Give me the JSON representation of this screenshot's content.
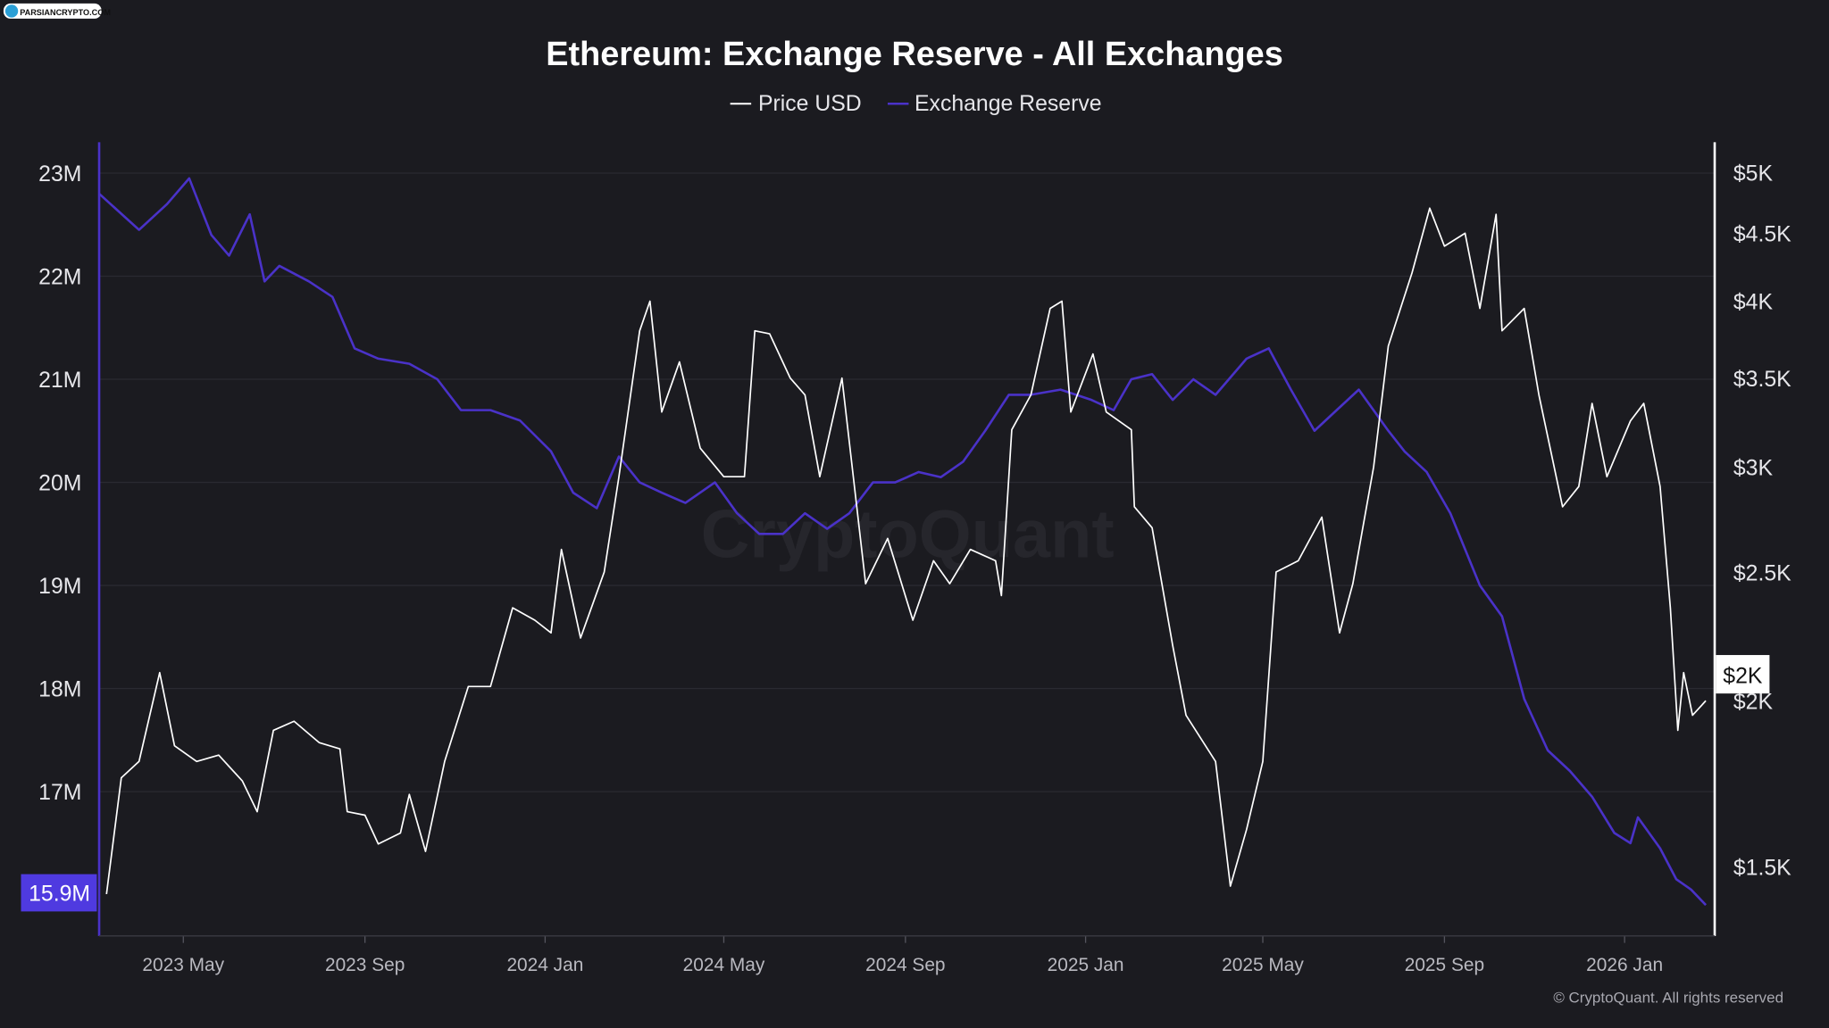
{
  "logo": {
    "text": "PARSIANCRYPTO.COM"
  },
  "watermark": "CryptoQuant",
  "copyright": "© CryptoQuant. All rights reserved",
  "colors": {
    "background": "#1b1b20",
    "price": "#ffffff",
    "reserve": "#4a32c8",
    "reserve_badge": "#4f3ae0",
    "grid": "#2a2a31"
  },
  "chart_data": {
    "type": "line",
    "title": "Ethereum: Exchange Reserve - All Exchanges",
    "legend": [
      "Price USD",
      "Exchange Reserve"
    ],
    "legend_position": "top-center",
    "x_range": [
      "2023-03-05",
      "2026-03-03"
    ],
    "x_ticks": [
      {
        "date": "2023-05-01",
        "label": "2023 May"
      },
      {
        "date": "2023-09-01",
        "label": "2023 Sep"
      },
      {
        "date": "2024-01-01",
        "label": "2024 Jan"
      },
      {
        "date": "2024-05-01",
        "label": "2024 May"
      },
      {
        "date": "2024-09-01",
        "label": "2024 Sep"
      },
      {
        "date": "2025-01-01",
        "label": "2025 Jan"
      },
      {
        "date": "2025-05-01",
        "label": "2025 May"
      },
      {
        "date": "2025-09-01",
        "label": "2025 Sep"
      },
      {
        "date": "2026-01-01",
        "label": "2026 Jan"
      }
    ],
    "left_axis": {
      "label": "Exchange Reserve",
      "scale": "linear",
      "range": [
        15.6,
        23.3
      ],
      "ticks": [
        {
          "v": 23,
          "label": "23M"
        },
        {
          "v": 22,
          "label": "22M"
        },
        {
          "v": 21,
          "label": "21M"
        },
        {
          "v": 20,
          "label": "20M"
        },
        {
          "v": 19,
          "label": "19M"
        },
        {
          "v": 18,
          "label": "18M"
        },
        {
          "v": 17,
          "label": "17M"
        }
      ],
      "current_label": "15.9M",
      "current_value": 15.9
    },
    "right_axis": {
      "label": "Price USD",
      "scale": "log",
      "range": [
        1330,
        5270
      ],
      "ticks": [
        {
          "v": 5000,
          "label": "$5K"
        },
        {
          "v": 4500,
          "label": "$4.5K"
        },
        {
          "v": 4000,
          "label": "$4K"
        },
        {
          "v": 3500,
          "label": "$3.5K"
        },
        {
          "v": 3000,
          "label": "$3K"
        },
        {
          "v": 2500,
          "label": "$2.5K"
        },
        {
          "v": 2000,
          "label": "$2K"
        },
        {
          "v": 1500,
          "label": "$1.5K"
        }
      ],
      "current_label": "$2K",
      "current_value": 2000
    },
    "grid": true,
    "series": [
      {
        "name": "Price USD",
        "axis": "right",
        "points": [
          [
            "2023-03-10",
            1430
          ],
          [
            "2023-03-20",
            1750
          ],
          [
            "2023-04-01",
            1800
          ],
          [
            "2023-04-15",
            2100
          ],
          [
            "2023-04-25",
            1850
          ],
          [
            "2023-05-10",
            1800
          ],
          [
            "2023-05-25",
            1820
          ],
          [
            "2023-06-10",
            1740
          ],
          [
            "2023-06-20",
            1650
          ],
          [
            "2023-07-01",
            1900
          ],
          [
            "2023-07-15",
            1930
          ],
          [
            "2023-08-01",
            1860
          ],
          [
            "2023-08-15",
            1840
          ],
          [
            "2023-08-20",
            1650
          ],
          [
            "2023-09-01",
            1640
          ],
          [
            "2023-09-10",
            1560
          ],
          [
            "2023-09-25",
            1590
          ],
          [
            "2023-10-01",
            1700
          ],
          [
            "2023-10-12",
            1540
          ],
          [
            "2023-10-25",
            1800
          ],
          [
            "2023-11-10",
            2050
          ],
          [
            "2023-11-25",
            2050
          ],
          [
            "2023-12-10",
            2350
          ],
          [
            "2023-12-25",
            2300
          ],
          [
            "2024-01-05",
            2250
          ],
          [
            "2024-01-12",
            2600
          ],
          [
            "2024-01-25",
            2230
          ],
          [
            "2024-02-10",
            2500
          ],
          [
            "2024-02-20",
            2950
          ],
          [
            "2024-03-05",
            3800
          ],
          [
            "2024-03-12",
            4000
          ],
          [
            "2024-03-20",
            3300
          ],
          [
            "2024-04-01",
            3600
          ],
          [
            "2024-04-15",
            3100
          ],
          [
            "2024-05-01",
            2950
          ],
          [
            "2024-05-15",
            2950
          ],
          [
            "2024-05-22",
            3800
          ],
          [
            "2024-06-01",
            3780
          ],
          [
            "2024-06-15",
            3500
          ],
          [
            "2024-06-25",
            3400
          ],
          [
            "2024-07-05",
            2950
          ],
          [
            "2024-07-20",
            3500
          ],
          [
            "2024-08-05",
            2450
          ],
          [
            "2024-08-20",
            2650
          ],
          [
            "2024-09-06",
            2300
          ],
          [
            "2024-09-20",
            2550
          ],
          [
            "2024-10-01",
            2450
          ],
          [
            "2024-10-15",
            2600
          ],
          [
            "2024-11-01",
            2550
          ],
          [
            "2024-11-05",
            2400
          ],
          [
            "2024-11-12",
            3200
          ],
          [
            "2024-11-25",
            3400
          ],
          [
            "2024-12-08",
            3950
          ],
          [
            "2024-12-16",
            4000
          ],
          [
            "2024-12-22",
            3300
          ],
          [
            "2025-01-06",
            3650
          ],
          [
            "2025-01-15",
            3300
          ],
          [
            "2025-02-01",
            3200
          ],
          [
            "2025-02-03",
            2800
          ],
          [
            "2025-02-15",
            2700
          ],
          [
            "2025-03-01",
            2200
          ],
          [
            "2025-03-10",
            1950
          ],
          [
            "2025-03-30",
            1800
          ],
          [
            "2025-04-09",
            1450
          ],
          [
            "2025-04-20",
            1600
          ],
          [
            "2025-05-01",
            1800
          ],
          [
            "2025-05-10",
            2500
          ],
          [
            "2025-05-25",
            2550
          ],
          [
            "2025-06-10",
            2750
          ],
          [
            "2025-06-22",
            2250
          ],
          [
            "2025-07-01",
            2450
          ],
          [
            "2025-07-15",
            3000
          ],
          [
            "2025-07-25",
            3700
          ],
          [
            "2025-08-10",
            4200
          ],
          [
            "2025-08-22",
            4700
          ],
          [
            "2025-09-01",
            4400
          ],
          [
            "2025-09-15",
            4500
          ],
          [
            "2025-09-25",
            3950
          ],
          [
            "2025-10-06",
            4650
          ],
          [
            "2025-10-10",
            3800
          ],
          [
            "2025-10-25",
            3950
          ],
          [
            "2025-11-04",
            3400
          ],
          [
            "2025-11-20",
            2800
          ],
          [
            "2025-12-01",
            2900
          ],
          [
            "2025-12-10",
            3350
          ],
          [
            "2025-12-20",
            2950
          ],
          [
            "2026-01-05",
            3250
          ],
          [
            "2026-01-14",
            3350
          ],
          [
            "2026-01-25",
            2900
          ],
          [
            "2026-02-01",
            2350
          ],
          [
            "2026-02-06",
            1900
          ],
          [
            "2026-02-10",
            2100
          ],
          [
            "2026-02-16",
            1950
          ],
          [
            "2026-02-25",
            2000
          ]
        ]
      },
      {
        "name": "Exchange Reserve",
        "axis": "left",
        "points": [
          [
            "2023-03-05",
            22.8
          ],
          [
            "2023-04-01",
            22.45
          ],
          [
            "2023-04-20",
            22.7
          ],
          [
            "2023-05-05",
            22.95
          ],
          [
            "2023-05-20",
            22.4
          ],
          [
            "2023-06-01",
            22.2
          ],
          [
            "2023-06-15",
            22.6
          ],
          [
            "2023-06-25",
            21.95
          ],
          [
            "2023-07-05",
            22.1
          ],
          [
            "2023-07-25",
            21.95
          ],
          [
            "2023-08-10",
            21.8
          ],
          [
            "2023-08-25",
            21.3
          ],
          [
            "2023-09-10",
            21.2
          ],
          [
            "2023-10-01",
            21.15
          ],
          [
            "2023-10-20",
            21.0
          ],
          [
            "2023-11-05",
            20.7
          ],
          [
            "2023-11-25",
            20.7
          ],
          [
            "2023-12-15",
            20.6
          ],
          [
            "2024-01-05",
            20.3
          ],
          [
            "2024-01-20",
            19.9
          ],
          [
            "2024-02-05",
            19.75
          ],
          [
            "2024-02-20",
            20.25
          ],
          [
            "2024-03-05",
            20.0
          ],
          [
            "2024-03-20",
            19.9
          ],
          [
            "2024-04-05",
            19.8
          ],
          [
            "2024-04-25",
            20.0
          ],
          [
            "2024-05-10",
            19.7
          ],
          [
            "2024-05-25",
            19.5
          ],
          [
            "2024-06-10",
            19.5
          ],
          [
            "2024-06-25",
            19.7
          ],
          [
            "2024-07-10",
            19.55
          ],
          [
            "2024-07-25",
            19.7
          ],
          [
            "2024-08-10",
            20.0
          ],
          [
            "2024-08-25",
            20.0
          ],
          [
            "2024-09-10",
            20.1
          ],
          [
            "2024-09-25",
            20.05
          ],
          [
            "2024-10-10",
            20.2
          ],
          [
            "2024-10-25",
            20.5
          ],
          [
            "2024-11-10",
            20.85
          ],
          [
            "2024-11-25",
            20.85
          ],
          [
            "2024-12-15",
            20.9
          ],
          [
            "2025-01-05",
            20.8
          ],
          [
            "2025-01-20",
            20.7
          ],
          [
            "2025-02-01",
            21.0
          ],
          [
            "2025-02-15",
            21.05
          ],
          [
            "2025-03-01",
            20.8
          ],
          [
            "2025-03-15",
            21.0
          ],
          [
            "2025-03-30",
            20.85
          ],
          [
            "2025-04-20",
            21.2
          ],
          [
            "2025-05-05",
            21.3
          ],
          [
            "2025-05-20",
            20.9
          ],
          [
            "2025-06-05",
            20.5
          ],
          [
            "2025-06-20",
            20.7
          ],
          [
            "2025-07-05",
            20.9
          ],
          [
            "2025-07-25",
            20.5
          ],
          [
            "2025-08-05",
            20.3
          ],
          [
            "2025-08-20",
            20.1
          ],
          [
            "2025-09-05",
            19.7
          ],
          [
            "2025-09-25",
            19.0
          ],
          [
            "2025-10-10",
            18.7
          ],
          [
            "2025-10-25",
            17.9
          ],
          [
            "2025-11-10",
            17.4
          ],
          [
            "2025-11-25",
            17.2
          ],
          [
            "2025-12-10",
            16.95
          ],
          [
            "2025-12-25",
            16.6
          ],
          [
            "2026-01-05",
            16.5
          ],
          [
            "2026-01-10",
            16.75
          ],
          [
            "2026-01-25",
            16.45
          ],
          [
            "2026-02-05",
            16.15
          ],
          [
            "2026-02-15",
            16.05
          ],
          [
            "2026-02-25",
            15.9
          ]
        ]
      }
    ]
  }
}
